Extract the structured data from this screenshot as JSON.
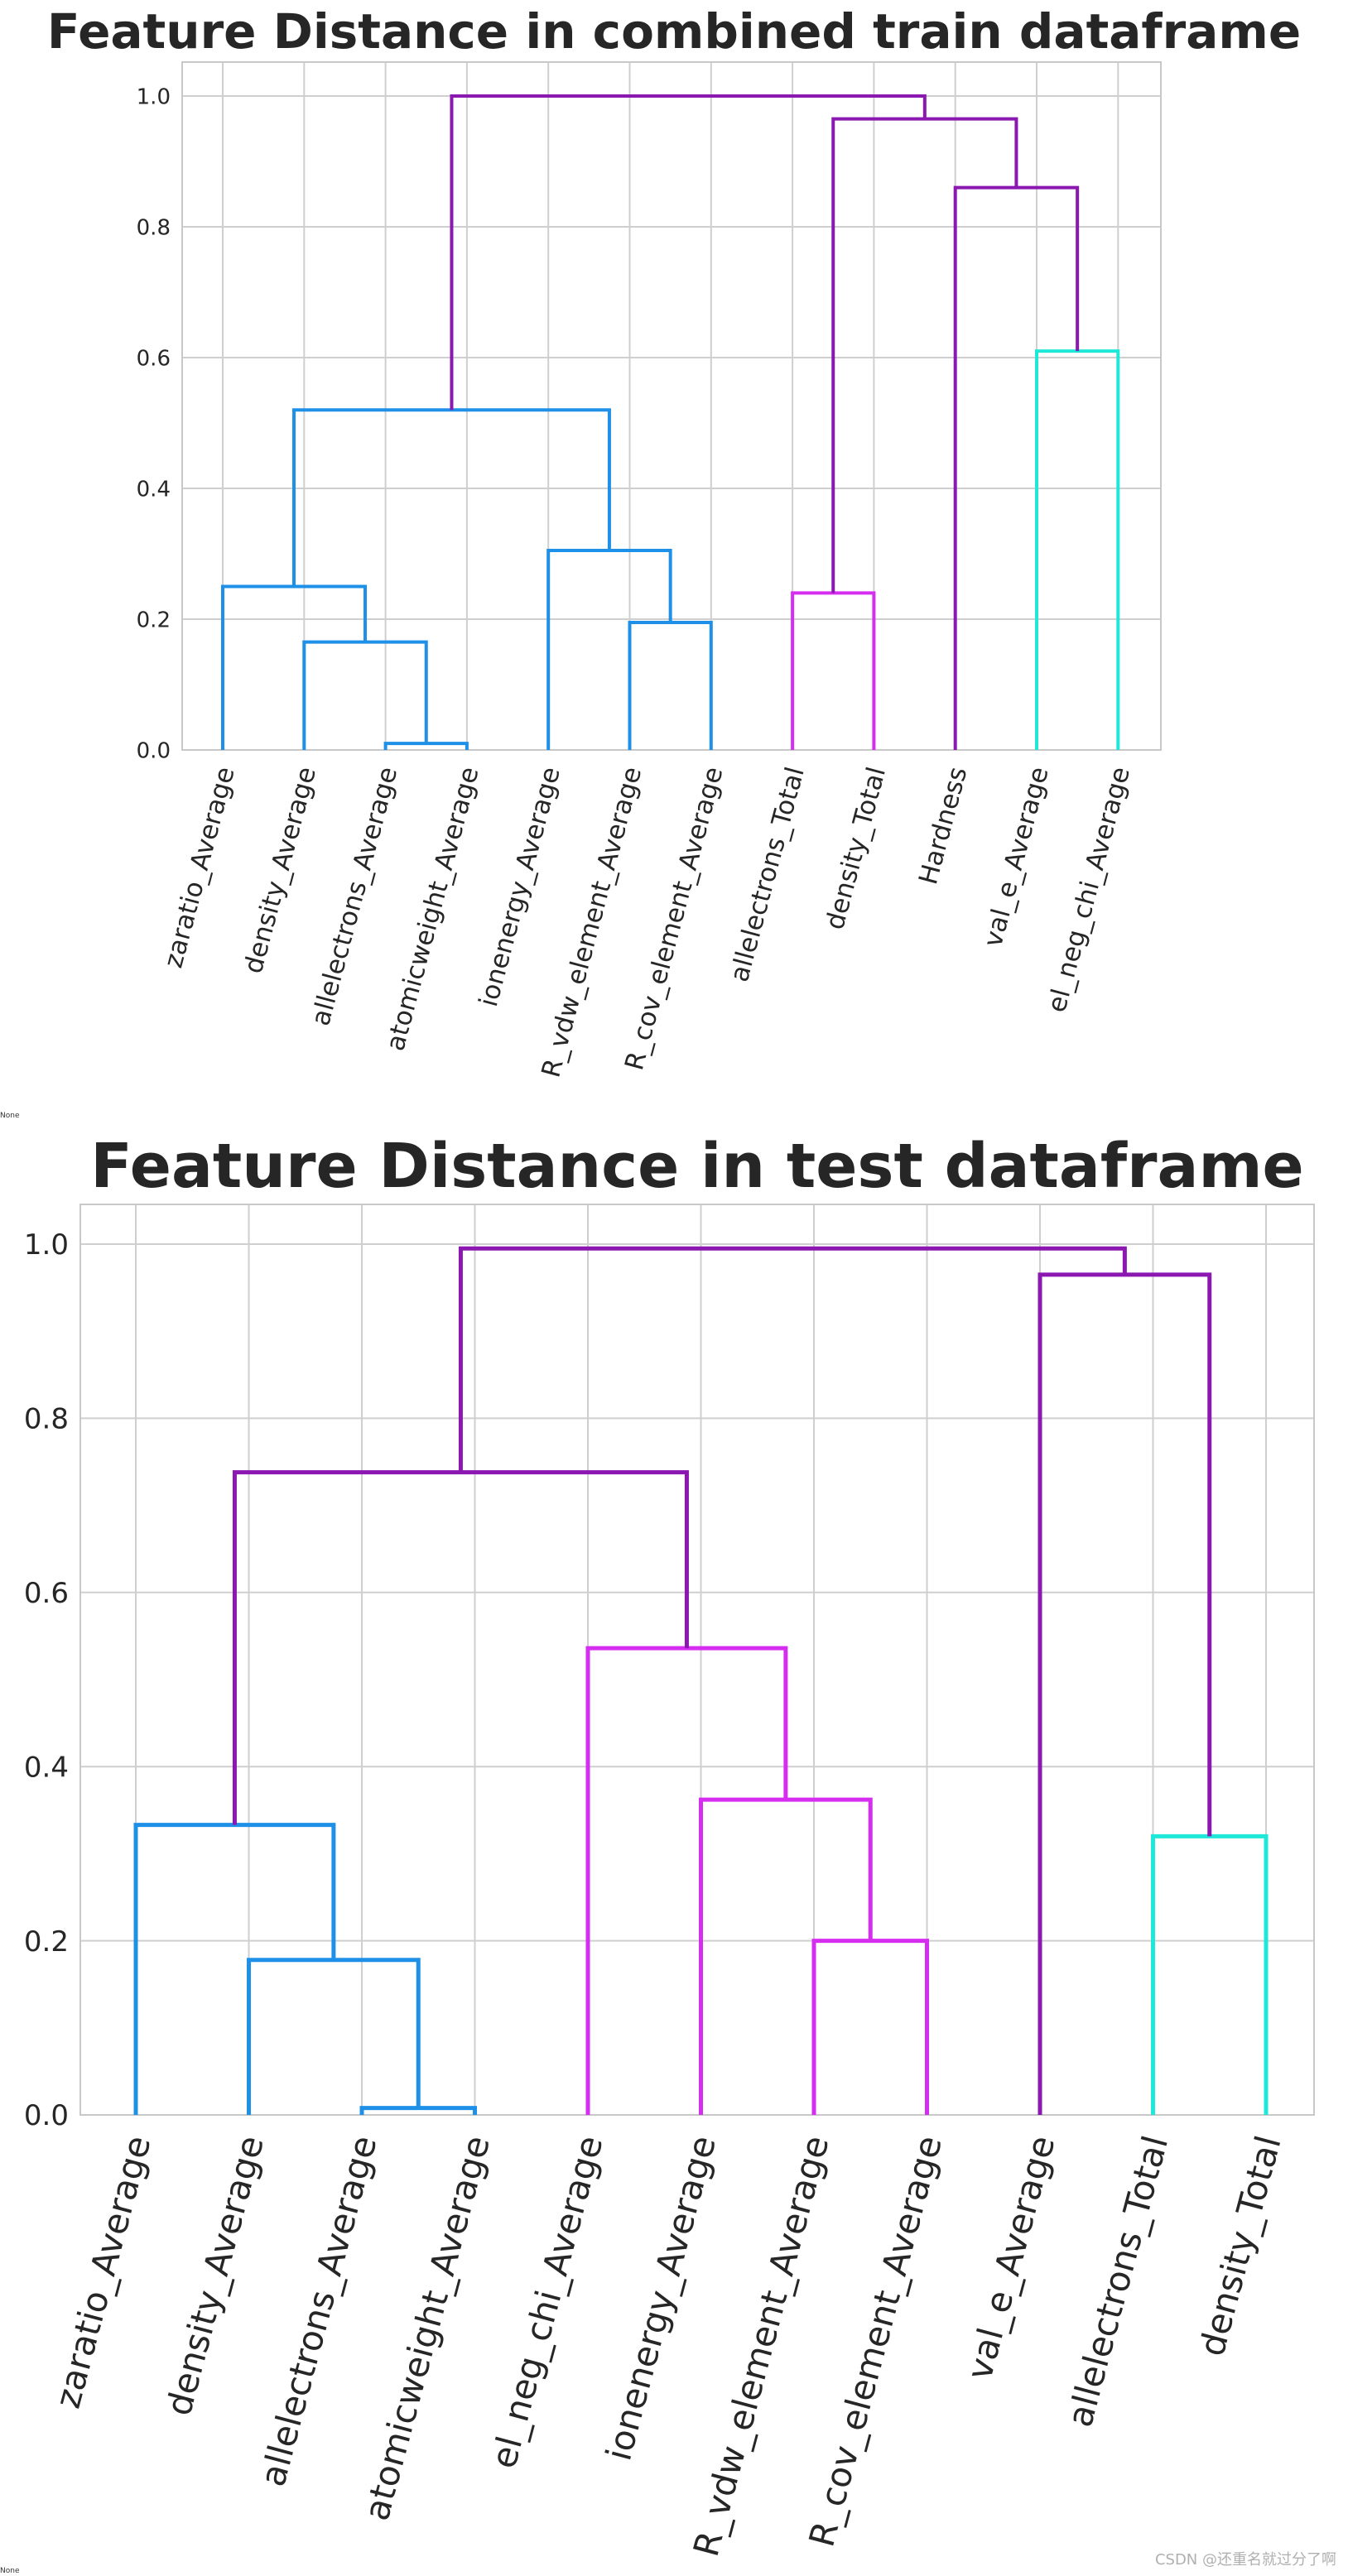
{
  "chart_data": [
    {
      "type": "dendrogram",
      "title": "Feature Distance in combined train dataframe",
      "ylim": [
        0,
        1.05
      ],
      "yticks": [
        "0.0",
        "0.2",
        "0.4",
        "0.6",
        "0.8",
        "1.0"
      ],
      "grid": true,
      "leaves": [
        "zaratio_Average",
        "density_Average",
        "allelectrons_Average",
        "atomicweight_Average",
        "ionenergy_Average",
        "R_vdw_element_Average",
        "R_cov_element_Average",
        "allelectrons_Total",
        "density_Total",
        "Hardness",
        "val_e_Average",
        "el_neg_chi_Average"
      ],
      "colors": {
        "blue": "#1e90e8",
        "magenta": "#d62ef0",
        "cyan": "#1ee8d8",
        "purple": "#8b18b0"
      },
      "merges": [
        {
          "a": 2,
          "b": 3,
          "height": 0.01,
          "color": "blue"
        },
        {
          "a": 1,
          "b": "m0",
          "height": 0.165,
          "color": "blue"
        },
        {
          "a": 0,
          "b": "m1",
          "height": 0.25,
          "color": "blue"
        },
        {
          "a": 5,
          "b": 6,
          "height": 0.195,
          "color": "blue"
        },
        {
          "a": 4,
          "b": "m3",
          "height": 0.305,
          "color": "blue"
        },
        {
          "a": "m2",
          "b": "m4",
          "height": 0.52,
          "color": "blue"
        },
        {
          "a": 7,
          "b": 8,
          "height": 0.24,
          "color": "magenta"
        },
        {
          "a": 10,
          "b": 11,
          "height": 0.61,
          "color": "cyan"
        },
        {
          "a": 9,
          "b": "m7",
          "height": 0.86,
          "color": "purple"
        },
        {
          "a": "m6",
          "b": "m8",
          "height": 0.965,
          "color": "purple"
        },
        {
          "a": "m5",
          "b": "m9",
          "height": 1.0,
          "color": "purple"
        }
      ],
      "caption": "None"
    },
    {
      "type": "dendrogram",
      "title": "Feature Distance in test dataframe",
      "ylim": [
        0,
        1.05
      ],
      "yticks": [
        "0.0",
        "0.2",
        "0.4",
        "0.6",
        "0.8",
        "1.0"
      ],
      "grid": true,
      "leaves": [
        "zaratio_Average",
        "density_Average",
        "allelectrons_Average",
        "atomicweight_Average",
        "el_neg_chi_Average",
        "ionenergy_Average",
        "R_vdw_element_Average",
        "R_cov_element_Average",
        "val_e_Average",
        "allelectrons_Total",
        "density_Total"
      ],
      "colors": {
        "blue": "#1e90e8",
        "magenta": "#d62ef0",
        "cyan": "#1ee8d8",
        "purple": "#8b18b0"
      },
      "merges": [
        {
          "a": 2,
          "b": 3,
          "height": 0.008,
          "color": "blue"
        },
        {
          "a": 1,
          "b": "m0",
          "height": 0.178,
          "color": "blue"
        },
        {
          "a": 0,
          "b": "m1",
          "height": 0.333,
          "color": "blue"
        },
        {
          "a": 6,
          "b": 7,
          "height": 0.2,
          "color": "magenta"
        },
        {
          "a": 5,
          "b": "m3",
          "height": 0.362,
          "color": "magenta"
        },
        {
          "a": 4,
          "b": "m4",
          "height": 0.536,
          "color": "magenta"
        },
        {
          "a": "m2",
          "b": "m5",
          "height": 0.738,
          "color": "purple"
        },
        {
          "a": 9,
          "b": 10,
          "height": 0.32,
          "color": "cyan"
        },
        {
          "a": 8,
          "b": "m7",
          "height": 0.965,
          "color": "purple"
        },
        {
          "a": "m6",
          "b": "m8",
          "height": 0.995,
          "color": "purple"
        }
      ],
      "caption": "None"
    }
  ],
  "watermark": "CSDN @还重名就过分了啊"
}
